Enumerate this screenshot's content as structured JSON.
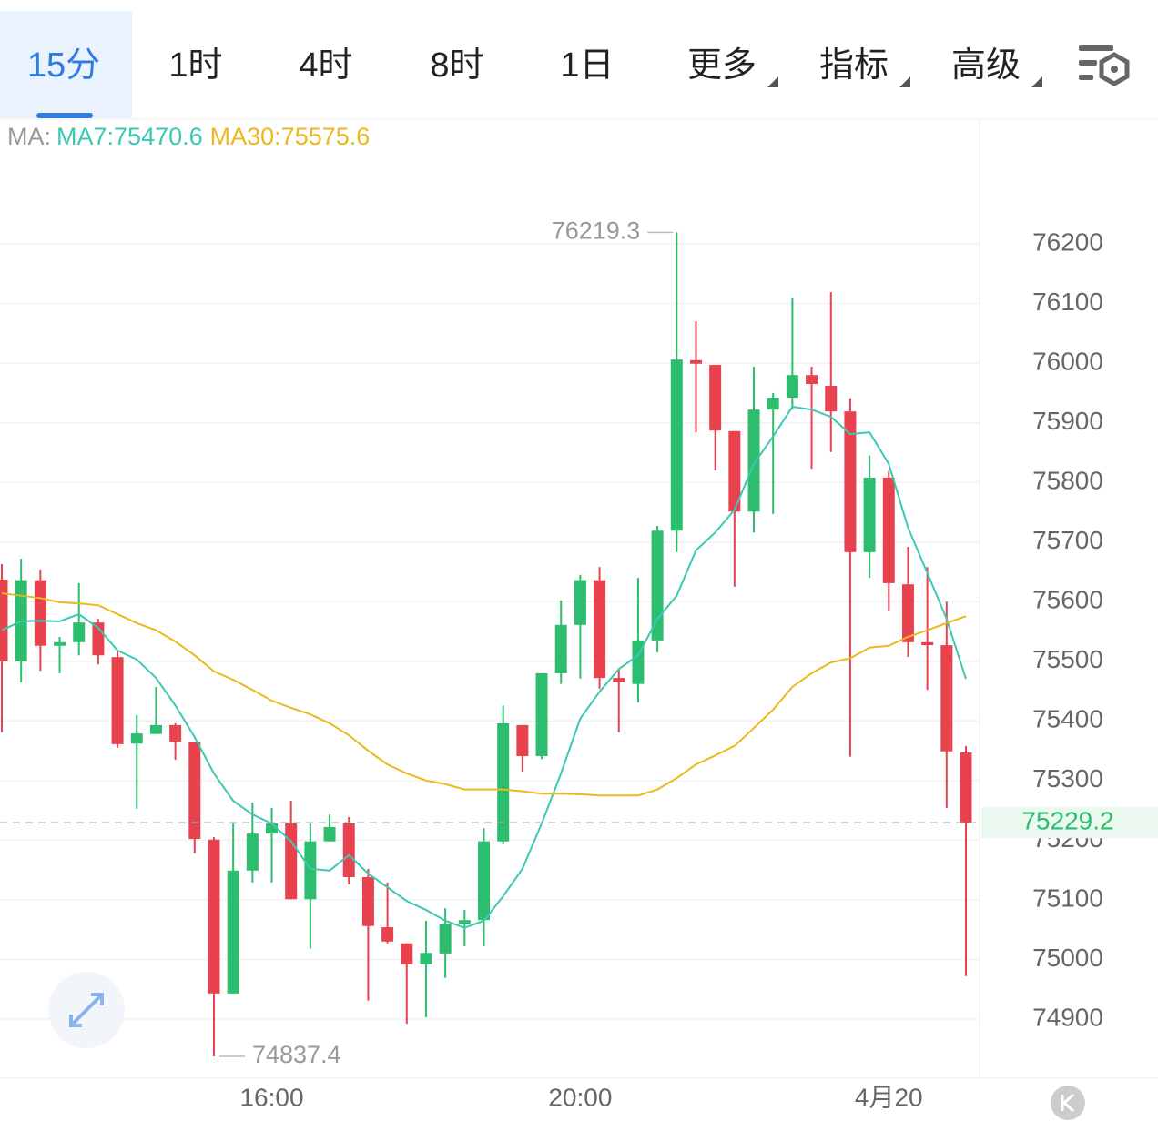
{
  "tabs": [
    "15分",
    "1时",
    "4时",
    "8时",
    "1日",
    "更多",
    "指标",
    "高级"
  ],
  "chart_data": {
    "type": "candlestick",
    "legend_prefix": "MA:",
    "categories": [
      null,
      null,
      null,
      null,
      null,
      null,
      null,
      null,
      null,
      null,
      null,
      null,
      null,
      null,
      "16:00",
      null,
      null,
      null,
      null,
      null,
      null,
      null,
      null,
      null,
      null,
      null,
      null,
      null,
      null,
      null,
      "20:00",
      null,
      null,
      null,
      null,
      null,
      null,
      null,
      null,
      null,
      null,
      null,
      null,
      null,
      null,
      null,
      "4月20",
      null,
      null,
      null,
      null
    ],
    "open": [
      75637,
      75500,
      75636,
      75526,
      75532,
      75565,
      75507,
      75362,
      75378,
      75393,
      75364,
      75201,
      74943,
      75149,
      75211,
      75228,
      75101,
      75198,
      75228,
      75138,
      75054,
      75027,
      74992,
      75010,
      75059,
      75066,
      75198,
      75393,
      75341,
      75480,
      75561,
      75636,
      75472,
      75462,
      75535,
      75719,
      76005,
      75997,
      75886,
      75751,
      75922,
      75942,
      75980,
      75962,
      75919,
      75683,
      75808,
      75629,
      75532,
      75527,
      75347
    ],
    "high": [
      75663,
      75672,
      75654,
      75541,
      75631,
      75571,
      75518,
      75410,
      75457,
      75396,
      75364,
      75205,
      75228,
      75263,
      75254,
      75266,
      75228,
      75243,
      75239,
      75152,
      75129,
      75027,
      75065,
      75086,
      75083,
      75220,
      75426,
      75393,
      75480,
      75602,
      75645,
      75658,
      75488,
      75640,
      75727,
      76219.3,
      76070,
      75997,
      75886,
      75994,
      75950,
      76109,
      75994,
      76119,
      75941,
      75845,
      75819,
      75692,
      75658,
      75600,
      75358
    ],
    "low": [
      75381,
      75465,
      75484,
      75480,
      75510,
      75495,
      75355,
      75253,
      75378,
      75335,
      75178,
      74837.4,
      74943,
      75129,
      75129,
      75101,
      75018,
      75198,
      75126,
      74931,
      75027,
      74892,
      74903,
      74969,
      75022,
      75022,
      75193,
      75315,
      75336,
      75462,
      75471,
      75454,
      75381,
      75431,
      75515,
      75683,
      75884,
      75820,
      75625,
      75716,
      75747,
      75922,
      75823,
      75851,
      75340,
      75640,
      75584,
      75507,
      75452,
      75254,
      74972
    ],
    "close": [
      75500,
      75636,
      75526,
      75532,
      75565,
      75510,
      75361,
      75379,
      75393,
      75365,
      75202,
      74943,
      75149,
      75211,
      75228,
      75101,
      75198,
      75222,
      75138,
      75056,
      75030,
      74992,
      75011,
      75059,
      75066,
      75198,
      75396,
      75341,
      75480,
      75561,
      75636,
      75472,
      75465,
      75535,
      75719,
      76006,
      75999,
      75887,
      75751,
      75922,
      75942,
      75980,
      75965,
      75919,
      75683,
      75808,
      75631,
      75532,
      75527,
      75349,
      75229.2
    ],
    "up_color": "#2dbd6e",
    "down_color": "#e8424f",
    "series": [
      {
        "name": "MA7",
        "label": "MA7:75470.6",
        "color": "#3cc8b4",
        "values": [
          75552,
          75567,
          75568,
          75567,
          75579,
          75556,
          75518,
          75503,
          75472,
          75426,
          75373,
          75312,
          75266,
          75243,
          75228,
          75198,
          75152,
          75149,
          75175,
          75144,
          75121,
          75098,
          75083,
          75065,
          75053,
          75065,
          75106,
          75152,
          75228,
          75312,
          75404,
          75449,
          75487,
          75510,
          75571,
          75610,
          75686,
          75716,
          75754,
          75831,
          75877,
          75927,
          75922,
          75910,
          75881,
          75884,
          75831,
          75724,
          75648,
          75571,
          75470.6
        ]
      },
      {
        "name": "MA30",
        "label": "MA30:75575.6",
        "color": "#ebb81e",
        "values": [
          75614,
          75610,
          75606,
          75599,
          75597,
          75594,
          75579,
          75564,
          75552,
          75533,
          75510,
          75483,
          75469,
          75452,
          75434,
          75422,
          75411,
          75396,
          75376,
          75350,
          75327,
          75312,
          75300,
          75294,
          75285,
          75285,
          75285,
          75282,
          75278,
          75278,
          75277,
          75275,
          75275,
          75275,
          75285,
          75304,
          75327,
          75342,
          75358,
          75388,
          75419,
          75457,
          75480,
          75498,
          75505,
          75523,
          75526,
          75541,
          75552,
          75564,
          75575.6
        ]
      }
    ],
    "ylim": [
      74800.8,
      76410.6
    ],
    "yticks": [
      74900,
      75000,
      75100,
      75200,
      75300,
      75400,
      75500,
      75600,
      75700,
      75800,
      75900,
      76000,
      76100,
      76200
    ],
    "grid": true
  }
}
